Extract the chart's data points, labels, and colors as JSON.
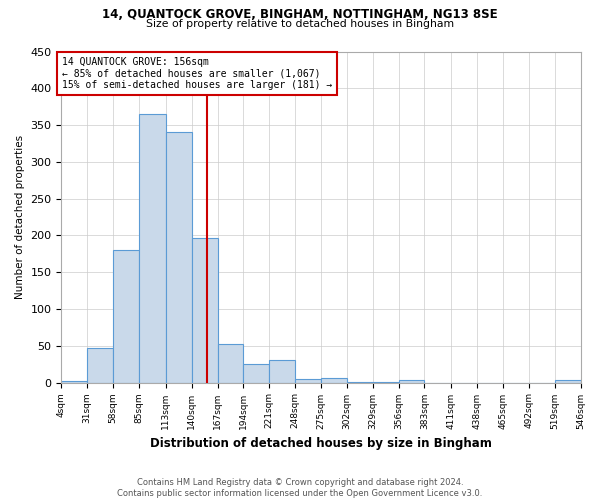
{
  "title1": "14, QUANTOCK GROVE, BINGHAM, NOTTINGHAM, NG13 8SE",
  "title2": "Size of property relative to detached houses in Bingham",
  "xlabel": "Distribution of detached houses by size in Bingham",
  "ylabel": "Number of detached properties",
  "footnote1": "Contains HM Land Registry data © Crown copyright and database right 2024.",
  "footnote2": "Contains public sector information licensed under the Open Government Licence v3.0.",
  "bin_edges": [
    4,
    31,
    58,
    85,
    113,
    140,
    167,
    194,
    221,
    248,
    275,
    302,
    329,
    356,
    383,
    411,
    438,
    465,
    492,
    519,
    546
  ],
  "bin_counts": [
    2,
    47,
    180,
    365,
    340,
    197,
    53,
    25,
    31,
    5,
    6,
    1,
    1,
    4,
    0,
    0,
    0,
    0,
    0,
    3
  ],
  "bar_color": "#c9d9ea",
  "bar_edge_color": "#5b9bd5",
  "vline_x": 156,
  "vline_color": "#cc0000",
  "annotation_line1": "14 QUANTOCK GROVE: 156sqm",
  "annotation_line2": "← 85% of detached houses are smaller (1,067)",
  "annotation_line3": "15% of semi-detached houses are larger (181) →",
  "annotation_box_color": "#cc0000",
  "annotation_font_color": "#000000",
  "ylim": [
    0,
    450
  ],
  "yticks": [
    0,
    50,
    100,
    150,
    200,
    250,
    300,
    350,
    400,
    450
  ],
  "background_color": "#ffffff",
  "grid_color": "#cccccc"
}
